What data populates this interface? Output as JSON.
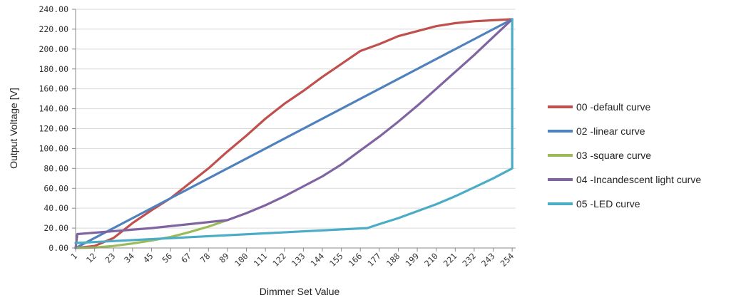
{
  "chart_data": {
    "type": "line",
    "xlabel": "Dimmer Set Value",
    "ylabel": "Output Voltage [V]",
    "ylim": [
      0,
      240
    ],
    "xlim": [
      1,
      256
    ],
    "y_ticks": [
      "0.00",
      "20.00",
      "40.00",
      "60.00",
      "80.00",
      "100.00",
      "120.00",
      "140.00",
      "160.00",
      "180.00",
      "200.00",
      "220.00",
      "240.00"
    ],
    "x_ticks": [
      1,
      12,
      23,
      34,
      45,
      56,
      67,
      78,
      89,
      100,
      111,
      122,
      133,
      144,
      155,
      166,
      177,
      188,
      199,
      210,
      221,
      232,
      243,
      254
    ],
    "grid": true,
    "legend_position": "right",
    "series": [
      {
        "name": "00 -default curve",
        "color": "#C0504D",
        "x": [
          1,
          12,
          23,
          34,
          45,
          56,
          67,
          78,
          89,
          100,
          111,
          122,
          133,
          144,
          155,
          166,
          177,
          188,
          199,
          210,
          221,
          232,
          243,
          254
        ],
        "y": [
          0,
          2,
          10,
          25,
          38,
          50,
          65,
          80,
          97,
          113,
          130,
          145,
          158,
          172,
          185,
          198,
          205,
          213,
          218,
          223,
          226,
          228,
          229,
          230
        ]
      },
      {
        "name": "02 -linear curve",
        "color": "#4F81BD",
        "x": [
          1,
          254
        ],
        "y": [
          0,
          230
        ]
      },
      {
        "name": "03 -square curve",
        "color": "#9BBB59",
        "x": [
          1,
          12,
          23,
          34,
          45,
          56,
          67,
          78,
          89
        ],
        "y": [
          0,
          0.4,
          2,
          4.5,
          7.5,
          11,
          16,
          21.5,
          28
        ]
      },
      {
        "name": "04 -Incandescent light curve",
        "color": "#8064A2",
        "x": [
          1,
          2,
          45,
          89,
          100,
          111,
          122,
          133,
          144,
          155,
          166,
          177,
          188,
          199,
          210,
          221,
          232,
          243,
          254
        ],
        "y": [
          0,
          14,
          20,
          28,
          35,
          43,
          52,
          62,
          72,
          84,
          98,
          112,
          127,
          143,
          160,
          177,
          194,
          212,
          230
        ]
      },
      {
        "name": "05 -LED curve",
        "color": "#4BACC6",
        "x": [
          1,
          170,
          177,
          188,
          199,
          210,
          221,
          232,
          243,
          254,
          254,
          254
        ],
        "y": [
          5,
          20,
          24,
          30,
          37,
          44,
          52,
          61,
          70,
          80,
          88,
          230
        ]
      }
    ]
  }
}
